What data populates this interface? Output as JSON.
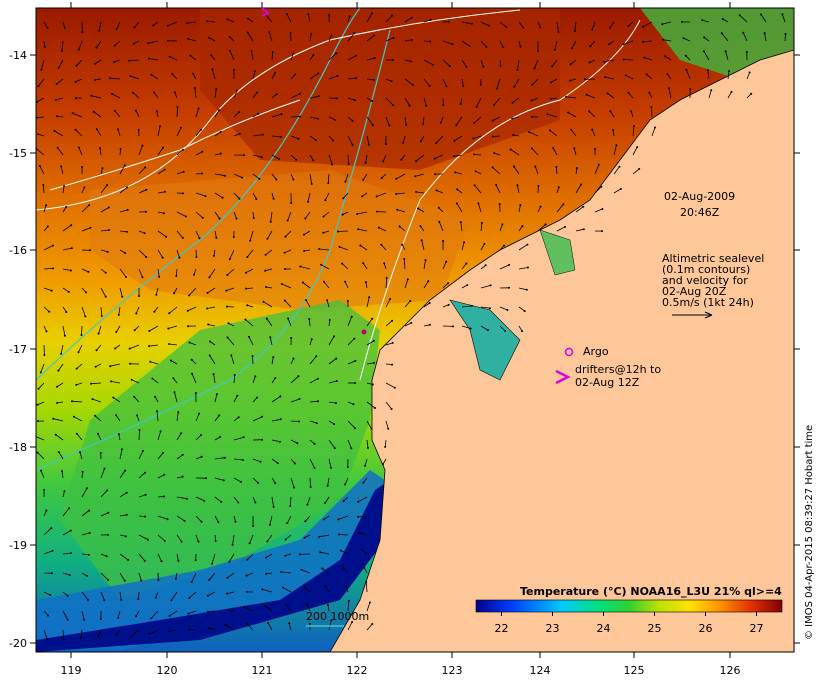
{
  "map": {
    "lon_ticks": [
      "119",
      "120",
      "121",
      "122",
      "123",
      "124",
      "125",
      "126"
    ],
    "lat_ticks": [
      "-14",
      "-15",
      "-16",
      "-17",
      "-18",
      "-19",
      "-20"
    ],
    "date_label": "02-Aug-2009",
    "time_label": "20:46Z",
    "altimetry_lines": [
      "Altimetric sealevel",
      "(0.1m contours)",
      "and velocity for",
      "02-Aug 20Z",
      "0.5m/s (1kt 24h)"
    ],
    "argo_label": "Argo",
    "drifter_lines": [
      "drifters@12h to",
      "02-Aug 12Z"
    ],
    "isobath_label": "200  1000m",
    "credit": "© IMOS 04-Apr-2015 08:39:27 Hobart time",
    "colorbar": {
      "title": "Temperature (°C) NOAA16_L3U 21% ql>=4",
      "ticks": [
        "22",
        "23",
        "24",
        "25",
        "26",
        "27"
      ],
      "min": 21.5,
      "max": 27.5
    },
    "colors": {
      "land": "#fdc79a",
      "argo": "#e000e0",
      "contour": "#ffffff",
      "isobath": "#40c8c8"
    }
  }
}
